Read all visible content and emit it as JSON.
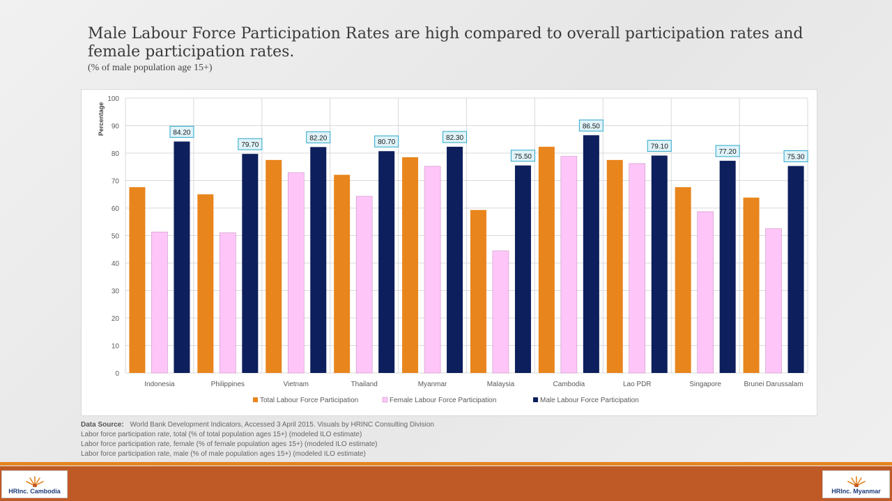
{
  "slide": {
    "title": "Male Labour Force Participation Rates are high compared to overall participation rates and female participation rates.",
    "subtitle": "(% of male population  age 15+)"
  },
  "colors": {
    "total": "#e8851d",
    "female": "#fec6f8",
    "male": "#0d1f5c",
    "grid": "#d9d9d9",
    "label_border": "#2aa6c9",
    "label_fill": "#dff3f9"
  },
  "chart_data": {
    "type": "bar",
    "title": "",
    "xlabel": "",
    "ylabel": "Percentage",
    "ylim": [
      0,
      100
    ],
    "yticks": [
      "0",
      "10",
      "20",
      "30",
      "40",
      "50",
      "60",
      "70",
      "80",
      "90",
      "100"
    ],
    "categories": [
      "Indonesia",
      "Philippines",
      "Vietnam",
      "Thailand",
      "Myanmar",
      "Malaysia",
      "Cambodia",
      "Lao PDR",
      "Singapore",
      "Brunei Darussalam"
    ],
    "series": [
      {
        "name": "Total Labour Force Participation",
        "color_key": "total",
        "values": [
          67.6,
          65.0,
          77.5,
          72.1,
          78.5,
          59.3,
          82.3,
          77.5,
          67.6,
          63.8
        ]
      },
      {
        "name": "Female Labour Force Participation",
        "color_key": "female",
        "values": [
          51.3,
          51.0,
          72.9,
          64.3,
          75.2,
          44.4,
          78.8,
          76.2,
          58.7,
          52.5
        ]
      },
      {
        "name": "Male Labour Force Participation",
        "color_key": "male",
        "values": [
          84.2,
          79.7,
          82.2,
          80.7,
          82.3,
          75.5,
          86.5,
          79.1,
          77.2,
          75.3
        ],
        "labels": [
          "84.20",
          "79.70",
          "82.20",
          "80.70",
          "82.30",
          "75.50",
          "86.50",
          "79.10",
          "77.20",
          "75.30"
        ]
      }
    ],
    "legend_position": "bottom"
  },
  "notes": {
    "source_label": "Data Source:",
    "source_text": "World Bank Development Indicators, Accessed 3 April 2015. Visuals by HRINC Consulting Division",
    "line1": "Labor force participation rate, total (% of total population ages 15+) (modeled ILO estimate)",
    "line2": "Labor force participation rate, female (% of female population ages 15+) (modeled ILO estimate)",
    "line3": "Labor force participation rate, male (% of male population ages 15+) (modeled ILO estimate)"
  },
  "logos": {
    "left": "HRInc. Cambodia",
    "right": "HRInc. Myanmar"
  }
}
